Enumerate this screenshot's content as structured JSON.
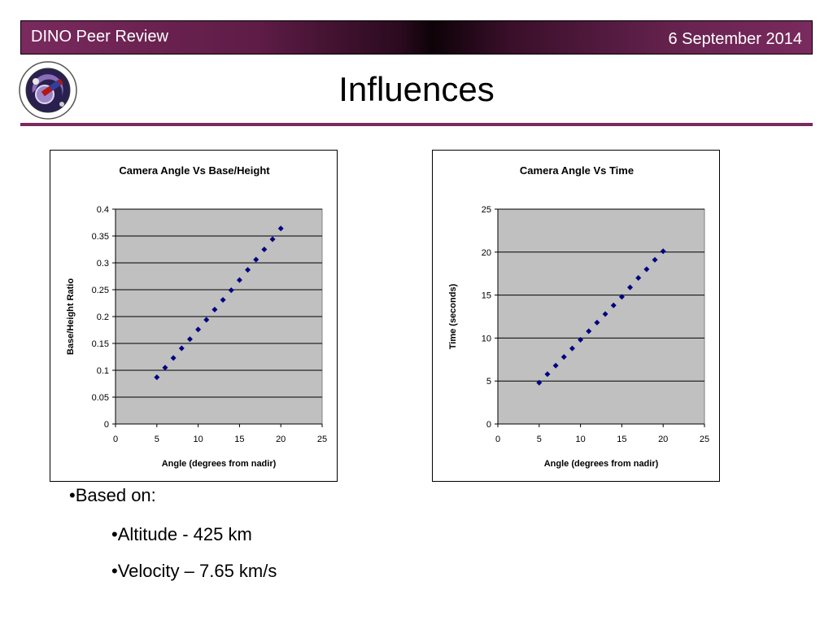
{
  "header": {
    "left_title": "DINO Peer Review",
    "date": "6 September 2014"
  },
  "slide": {
    "title": "Influences"
  },
  "colors": {
    "accent": "#7a2a5e",
    "plot_area": "#c0c0c0",
    "marker": "#000080"
  },
  "logo": {
    "icon": "dino-mission-logo"
  },
  "bullets": {
    "b1": "•Based on:",
    "b2": "•Altitude - 425 km",
    "b3": "•Velocity – 7.65 km/s"
  },
  "chart_data": [
    {
      "type": "scatter",
      "title": "Camera Angle Vs Base/Height",
      "xlabel": "Angle (degrees from nadir)",
      "ylabel": "Base/Height Ratio",
      "xlim": [
        0,
        25
      ],
      "ylim": [
        0,
        0.4
      ],
      "xticks": [
        "0",
        "5",
        "10",
        "15",
        "20",
        "25"
      ],
      "yticks": [
        "0",
        "0.05",
        "0.1",
        "0.15",
        "0.2",
        "0.25",
        "0.3",
        "0.35",
        "0.4"
      ],
      "grid": true,
      "legend": "none",
      "x": [
        5,
        6,
        7,
        8,
        9,
        10,
        11,
        12,
        13,
        14,
        15,
        16,
        17,
        18,
        19,
        20
      ],
      "y": [
        0.087,
        0.105,
        0.123,
        0.141,
        0.158,
        0.176,
        0.194,
        0.213,
        0.231,
        0.249,
        0.268,
        0.287,
        0.306,
        0.325,
        0.344,
        0.364
      ]
    },
    {
      "type": "scatter",
      "title": "Camera Angle Vs Time",
      "xlabel": "Angle (degrees from nadir)",
      "ylabel": "Time (seconds)",
      "xlim": [
        0,
        25
      ],
      "ylim": [
        0,
        25
      ],
      "xticks": [
        "0",
        "5",
        "10",
        "15",
        "20",
        "25"
      ],
      "yticks": [
        "0",
        "5",
        "10",
        "15",
        "20",
        "25"
      ],
      "grid": true,
      "legend": "none",
      "x": [
        5,
        6,
        7,
        8,
        9,
        10,
        11,
        12,
        13,
        14,
        15,
        16,
        17,
        18,
        19,
        20
      ],
      "y": [
        4.8,
        5.8,
        6.8,
        7.8,
        8.8,
        9.8,
        10.8,
        11.8,
        12.8,
        13.8,
        14.8,
        15.9,
        17.0,
        18.0,
        19.1,
        20.1
      ]
    }
  ]
}
